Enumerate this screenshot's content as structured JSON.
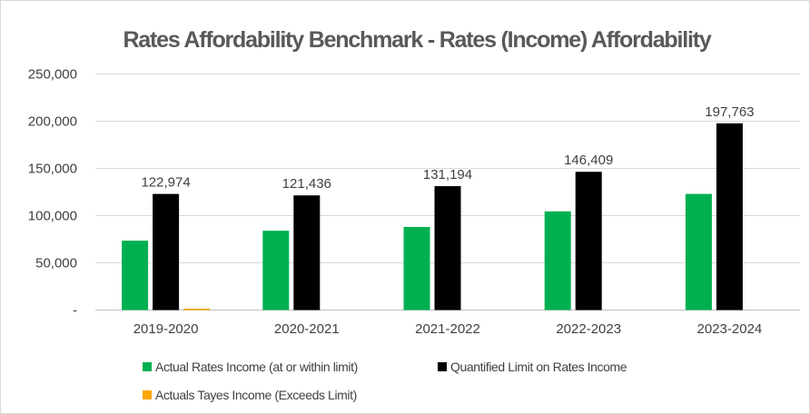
{
  "chart_data": {
    "type": "bar",
    "title": "Rates Affordability Benchmark - Rates (Income) Affordability",
    "categories": [
      "2019-2020",
      "2020-2021",
      "2021-2022",
      "2022-2023",
      "2023-2024"
    ],
    "series": [
      {
        "name": "Actual Rates Income (at or within limit)",
        "values": [
          73500,
          84000,
          88000,
          104500,
          123000
        ],
        "color": "#00b050"
      },
      {
        "name": "Quantified Limit on Rates Income",
        "values": [
          122974,
          121436,
          131194,
          146409,
          197763
        ],
        "color": "#000000"
      },
      {
        "name": "Actuals Tayes Income (Exceeds Limit)",
        "values": [
          1500,
          0,
          0,
          0,
          0
        ],
        "color": "#ffa500"
      }
    ],
    "data_labels": [
      "122,974",
      "121,436",
      "131,194",
      "146,409",
      "197,763"
    ],
    "y_ticks": [
      "-",
      "50,000",
      "100,000",
      "150,000",
      "200,000",
      "250,000"
    ],
    "ylim": [
      0,
      250000
    ],
    "grid": true,
    "legend_position": "bottom"
  }
}
